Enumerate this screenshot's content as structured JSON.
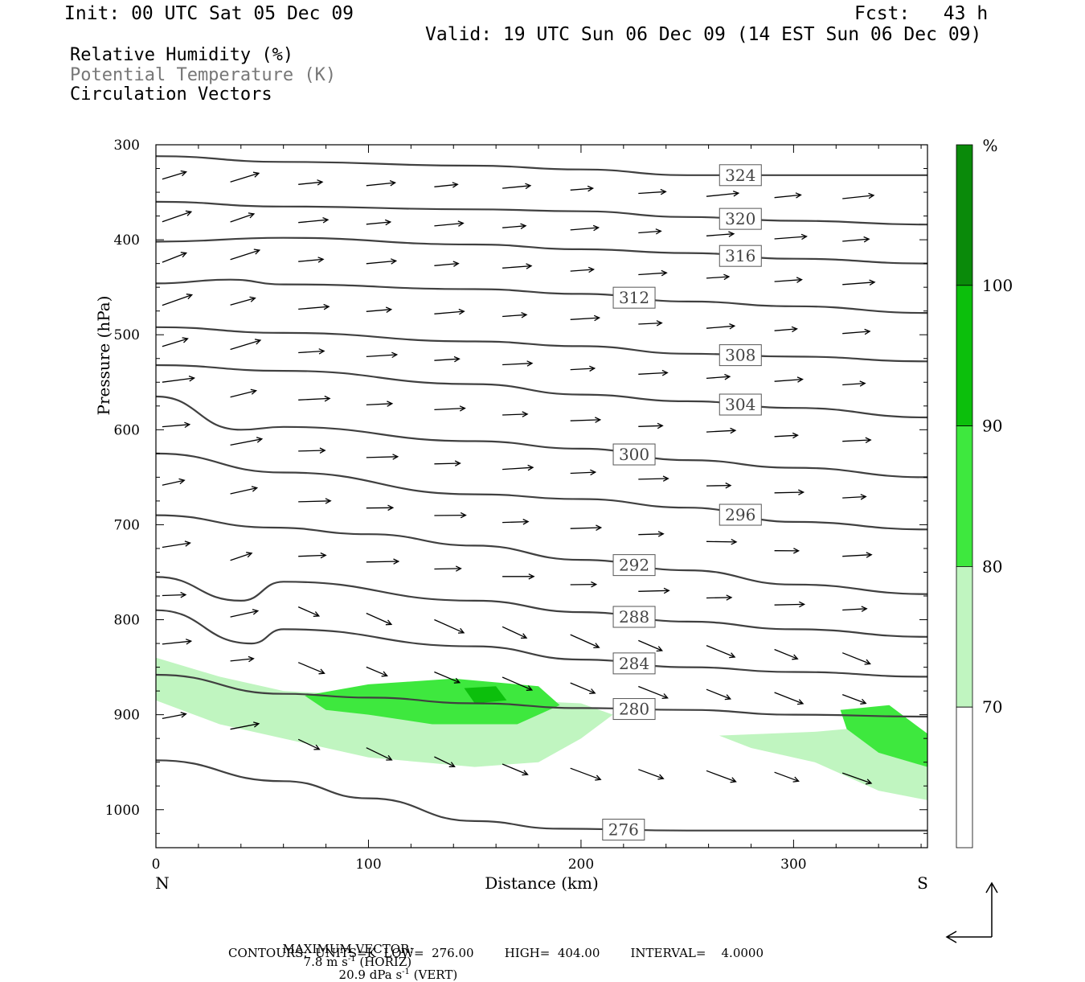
{
  "header": {
    "init": "Init: 00 UTC Sat 05 Dec 09",
    "fcst": "Fcst:   43 h",
    "valid": "Valid: 19 UTC Sun 06 Dec 09 (14 EST Sun 06 Dec 09)"
  },
  "legend": {
    "rh": "Relative Humidity (%)",
    "theta": "Potential Temperature (K)",
    "vectors": "Circulation Vectors"
  },
  "footer": {
    "max_vector_label": "MAXIMUM VECTOR:",
    "max_horiz": "7.8 m s",
    "max_horiz_exp": "-1",
    "max_horiz_tail": " (HORIZ)",
    "max_vert": "20.9 dPa s",
    "max_vert_exp": "-1",
    "max_vert_tail": " (VERT)",
    "contours": "CONTOURS:  UNITS=K  LOW=  276.00        HIGH=  404.00        INTERVAL=    4.0000"
  },
  "colors": {
    "rh70": "#c0f5c0",
    "rh80": "#3ee83e",
    "rh90": "#0cbf0c",
    "rh100": "#0a8a0a",
    "contour": "#404040"
  },
  "chart_data": {
    "type": "cross-section",
    "title": "",
    "xlabel": "Distance (km)",
    "ylabel": "Pressure (hPa)",
    "xlim": [
      0,
      363
    ],
    "ylim": [
      1040,
      300
    ],
    "x_ticks": [
      "0",
      "100",
      "200",
      "300"
    ],
    "x_tick_values": [
      0,
      100,
      200,
      300
    ],
    "x_end_labels": {
      "left": "N",
      "right": "S"
    },
    "y_ticks": [
      "300",
      "400",
      "500",
      "600",
      "700",
      "800",
      "900",
      "1000"
    ],
    "y_tick_values": [
      300,
      400,
      500,
      600,
      700,
      800,
      900,
      1000
    ],
    "colorbar": {
      "unit": "%",
      "levels": [
        70,
        80,
        90,
        100
      ],
      "level_labels": [
        "70",
        "80",
        "90",
        "100"
      ]
    },
    "theta_contours": [
      {
        "label": "324",
        "points": [
          [
            0,
            312
          ],
          [
            60,
            318
          ],
          [
            150,
            322
          ],
          [
            200,
            326
          ],
          [
            250,
            332
          ],
          [
            300,
            332
          ],
          [
            363,
            332
          ]
        ]
      },
      {
        "label": "320",
        "points": [
          [
            0,
            360
          ],
          [
            60,
            365
          ],
          [
            150,
            368
          ],
          [
            200,
            370
          ],
          [
            250,
            376
          ],
          [
            300,
            380
          ],
          [
            363,
            384
          ]
        ]
      },
      {
        "label": "316",
        "points": [
          [
            0,
            402
          ],
          [
            60,
            398
          ],
          [
            150,
            405
          ],
          [
            200,
            410
          ],
          [
            250,
            414
          ],
          [
            300,
            420
          ],
          [
            363,
            425
          ]
        ]
      },
      {
        "label": "312",
        "points": [
          [
            0,
            446
          ],
          [
            35,
            442
          ],
          [
            60,
            447
          ],
          [
            150,
            452
          ],
          [
            200,
            457
          ],
          [
            250,
            465
          ],
          [
            300,
            470
          ],
          [
            363,
            477
          ]
        ]
      },
      {
        "label": "308",
        "points": [
          [
            0,
            492
          ],
          [
            60,
            498
          ],
          [
            150,
            507
          ],
          [
            200,
            512
          ],
          [
            250,
            520
          ],
          [
            300,
            523
          ],
          [
            363,
            528
          ]
        ]
      },
      {
        "label": "304",
        "points": [
          [
            0,
            532
          ],
          [
            60,
            538
          ],
          [
            150,
            552
          ],
          [
            200,
            563
          ],
          [
            250,
            570
          ],
          [
            300,
            577
          ],
          [
            363,
            587
          ]
        ]
      },
      {
        "label": "300",
        "points": [
          [
            0,
            565
          ],
          [
            40,
            600
          ],
          [
            60,
            597
          ],
          [
            150,
            612
          ],
          [
            200,
            620
          ],
          [
            250,
            632
          ],
          [
            300,
            640
          ],
          [
            363,
            650
          ]
        ]
      },
      {
        "label": "296",
        "points": [
          [
            0,
            625
          ],
          [
            60,
            645
          ],
          [
            150,
            668
          ],
          [
            200,
            673
          ],
          [
            250,
            682
          ],
          [
            300,
            697
          ],
          [
            363,
            705
          ]
        ]
      },
      {
        "label": "292",
        "points": [
          [
            0,
            690
          ],
          [
            55,
            703
          ],
          [
            100,
            710
          ],
          [
            150,
            722
          ],
          [
            200,
            737
          ],
          [
            250,
            748
          ],
          [
            300,
            763
          ],
          [
            363,
            773
          ]
        ]
      },
      {
        "label": "288",
        "points": [
          [
            0,
            755
          ],
          [
            40,
            780
          ],
          [
            60,
            760
          ],
          [
            150,
            780
          ],
          [
            200,
            792
          ],
          [
            250,
            802
          ],
          [
            300,
            810
          ],
          [
            363,
            818
          ]
        ]
      },
      {
        "label": "284",
        "points": [
          [
            0,
            790
          ],
          [
            45,
            825
          ],
          [
            60,
            810
          ],
          [
            150,
            828
          ],
          [
            200,
            842
          ],
          [
            250,
            850
          ],
          [
            300,
            855
          ],
          [
            363,
            860
          ]
        ]
      },
      {
        "label": "280",
        "points": [
          [
            0,
            858
          ],
          [
            60,
            878
          ],
          [
            100,
            882
          ],
          [
            150,
            888
          ],
          [
            200,
            893
          ],
          [
            250,
            895
          ],
          [
            300,
            900
          ],
          [
            363,
            902
          ]
        ]
      },
      {
        "label": "276",
        "points": [
          [
            0,
            948
          ],
          [
            60,
            970
          ],
          [
            100,
            988
          ],
          [
            150,
            1012
          ],
          [
            190,
            1020
          ],
          [
            250,
            1022
          ],
          [
            300,
            1022
          ],
          [
            363,
            1022
          ]
        ]
      }
    ],
    "rh_shading": [
      {
        "level": 70,
        "points": [
          [
            0,
            840
          ],
          [
            30,
            860
          ],
          [
            60,
            875
          ],
          [
            100,
            880
          ],
          [
            150,
            883
          ],
          [
            200,
            888
          ],
          [
            215,
            900
          ],
          [
            200,
            925
          ],
          [
            180,
            950
          ],
          [
            150,
            955
          ],
          [
            100,
            945
          ],
          [
            60,
            925
          ],
          [
            30,
            910
          ],
          [
            0,
            885
          ]
        ]
      },
      {
        "level": 80,
        "points": [
          [
            70,
            880
          ],
          [
            100,
            868
          ],
          [
            140,
            862
          ],
          [
            180,
            870
          ],
          [
            190,
            890
          ],
          [
            170,
            910
          ],
          [
            130,
            910
          ],
          [
            100,
            900
          ],
          [
            80,
            895
          ]
        ]
      },
      {
        "level": 90,
        "points": [
          [
            145,
            872
          ],
          [
            160,
            870
          ],
          [
            165,
            885
          ],
          [
            150,
            888
          ]
        ]
      },
      {
        "level": 70,
        "points": [
          [
            265,
            922
          ],
          [
            310,
            918
          ],
          [
            340,
            912
          ],
          [
            363,
            925
          ],
          [
            363,
            990
          ],
          [
            340,
            980
          ],
          [
            310,
            950
          ],
          [
            280,
            935
          ]
        ]
      },
      {
        "level": 80,
        "points": [
          [
            322,
            895
          ],
          [
            345,
            890
          ],
          [
            363,
            920
          ],
          [
            363,
            955
          ],
          [
            340,
            940
          ],
          [
            325,
            915
          ]
        ]
      }
    ]
  }
}
